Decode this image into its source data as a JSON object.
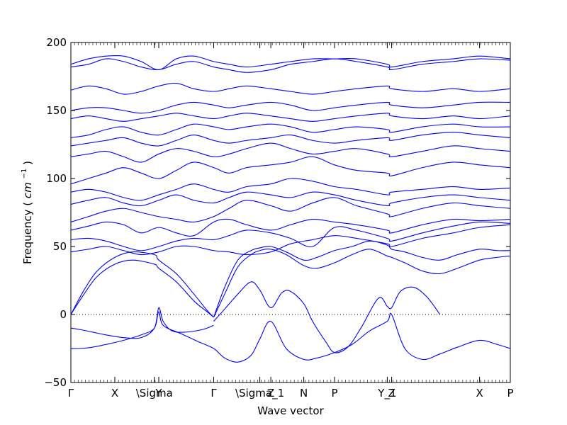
{
  "chart_data": {
    "type": "line",
    "xlabel": "Wave vector",
    "ylabel": "Frequency",
    "ylabel_unit": "cm",
    "ylabel_unit_exponent": "−1",
    "ylim": [
      -50,
      200
    ],
    "yticks": [
      -50,
      0,
      50,
      100,
      150,
      200
    ],
    "xlim": [
      0,
      1
    ],
    "zero_line": true,
    "line_color": "#0000ff",
    "high_symmetry_points": [
      {
        "label": "Γ",
        "x": 0.0
      },
      {
        "label": "X",
        "x": 0.1
      },
      {
        "label": "\\Sigma",
        "x": 0.19
      },
      {
        "label": "Y",
        "x": 0.2
      },
      {
        "label": "Γ",
        "x": 0.325
      },
      {
        "label": "\\Sigma_1",
        "x": 0.43
      },
      {
        "label": "Z",
        "x": 0.455
      },
      {
        "label": "N",
        "x": 0.53
      },
      {
        "label": "P",
        "x": 0.6
      },
      {
        "label": "Y_1",
        "x": 0.72
      },
      {
        "label": "Z",
        "x": 0.73
      },
      {
        "label": "X",
        "x": 0.93
      },
      {
        "label": "P",
        "x": 1.0
      }
    ],
    "series": [
      {
        "x": [
          0.0,
          0.02,
          0.05,
          0.08,
          0.12,
          0.16,
          0.19,
          0.2,
          0.21,
          0.25,
          0.29,
          0.325,
          0.35,
          0.38,
          0.41,
          0.43,
          0.455,
          0.49,
          0.53,
          0.56,
          0.6,
          0.64,
          0.68,
          0.72,
          0.73,
          0.76,
          0.8,
          0.84,
          0.88,
          0.93,
          0.97,
          1.0
        ],
        "values": [
          -25,
          -25,
          -24,
          -22,
          -19,
          -15,
          -10,
          2,
          -8,
          -14,
          -20,
          -25,
          -32,
          -35,
          -30,
          -18,
          -5,
          -25,
          -33,
          -32,
          -28,
          -22,
          -12,
          -5,
          0,
          -25,
          -33,
          -29,
          -24,
          -19,
          -22,
          -25
        ]
      },
      {
        "x": [
          0.0,
          0.02,
          0.05,
          0.08,
          0.12,
          0.16,
          0.19,
          0.2,
          0.21,
          0.23,
          0.26,
          0.3,
          0.325
        ],
        "values": [
          -10,
          -11,
          -13,
          -15,
          -17,
          -17,
          -10,
          5,
          -5,
          -12,
          -13,
          -11,
          -8
        ]
      },
      {
        "x": [
          0.325,
          0.35,
          0.38,
          0.41,
          0.43,
          0.455,
          0.48,
          0.5,
          0.53,
          0.55,
          0.58,
          0.6,
          0.63,
          0.66,
          0.7,
          0.72,
          0.73,
          0.75,
          0.78,
          0.81,
          0.84
        ],
        "values": [
          -5,
          4,
          15,
          24,
          18,
          5,
          16,
          17,
          8,
          -5,
          -20,
          -28,
          -24,
          -10,
          12,
          6,
          5,
          17,
          20,
          13,
          0
        ]
      },
      {
        "x": [
          0.0,
          0.03,
          0.06,
          0.1,
          0.14,
          0.19,
          0.2,
          0.24,
          0.28,
          0.31,
          0.325
        ],
        "values": [
          0,
          18,
          32,
          42,
          46,
          44,
          40,
          30,
          15,
          3,
          -2
        ]
      },
      {
        "x": [
          0.0,
          0.03,
          0.06,
          0.1,
          0.14,
          0.19,
          0.2,
          0.24,
          0.28,
          0.31,
          0.325
        ],
        "values": [
          0,
          15,
          28,
          37,
          40,
          37,
          34,
          24,
          10,
          2,
          -2
        ]
      },
      {
        "x": [
          0.325,
          0.35,
          0.38,
          0.41,
          0.43,
          0.455,
          0.49,
          0.53,
          0.56,
          0.6,
          0.64,
          0.68,
          0.72,
          0.73,
          0.76,
          0.8,
          0.84,
          0.88,
          0.93,
          0.97,
          1.0
        ],
        "values": [
          -2,
          15,
          35,
          44,
          47,
          48,
          44,
          36,
          34,
          38,
          44,
          48,
          43,
          42,
          38,
          32,
          30,
          34,
          40,
          42,
          43
        ]
      },
      {
        "x": [
          0.325,
          0.35,
          0.38,
          0.41,
          0.43,
          0.455,
          0.49,
          0.53,
          0.56,
          0.6,
          0.64,
          0.68,
          0.72,
          0.73,
          0.76,
          0.8,
          0.84,
          0.88,
          0.93,
          0.97,
          1.0
        ],
        "values": [
          -2,
          20,
          40,
          47,
          49,
          50,
          46,
          40,
          42,
          47,
          50,
          54,
          51,
          48,
          46,
          42,
          40,
          44,
          48,
          47,
          47
        ]
      },
      {
        "x": [
          0.0,
          0.04,
          0.08,
          0.12,
          0.16,
          0.2,
          0.24,
          0.28,
          0.325,
          0.36,
          0.4,
          0.455,
          0.5,
          0.55,
          0.6,
          0.65,
          0.72,
          0.73,
          0.8,
          0.87,
          0.93,
          1.0
        ],
        "values": [
          46,
          48,
          50,
          47,
          44,
          46,
          50,
          50,
          47,
          46,
          44,
          46,
          52,
          55,
          58,
          56,
          52,
          50,
          56,
          60,
          64,
          66
        ]
      },
      {
        "x": [
          0.0,
          0.04,
          0.08,
          0.12,
          0.16,
          0.2,
          0.24,
          0.28,
          0.325,
          0.36,
          0.4,
          0.455,
          0.5,
          0.55,
          0.6,
          0.65,
          0.72,
          0.73,
          0.8,
          0.87,
          0.93,
          1.0
        ],
        "values": [
          55,
          56,
          54,
          50,
          47,
          50,
          54,
          56,
          55,
          58,
          62,
          60,
          56,
          50,
          64,
          62,
          56,
          54,
          60,
          65,
          68,
          67
        ]
      },
      {
        "x": [
          0.0,
          0.04,
          0.08,
          0.12,
          0.16,
          0.2,
          0.24,
          0.28,
          0.325,
          0.36,
          0.4,
          0.455,
          0.5,
          0.55,
          0.6,
          0.65,
          0.72,
          0.73,
          0.8,
          0.87,
          0.93,
          1.0
        ],
        "values": [
          62,
          65,
          68,
          66,
          60,
          64,
          60,
          58,
          68,
          70,
          66,
          62,
          66,
          70,
          68,
          66,
          62,
          60,
          66,
          70,
          69,
          70
        ]
      },
      {
        "x": [
          0.0,
          0.04,
          0.08,
          0.12,
          0.16,
          0.2,
          0.24,
          0.28,
          0.325,
          0.36,
          0.4,
          0.455,
          0.5,
          0.55,
          0.6,
          0.65,
          0.72,
          0.73,
          0.8,
          0.87,
          0.93,
          1.0
        ],
        "values": [
          68,
          72,
          76,
          78,
          75,
          72,
          70,
          68,
          72,
          78,
          84,
          80,
          76,
          82,
          86,
          80,
          74,
          72,
          78,
          82,
          80,
          78
        ]
      },
      {
        "x": [
          0.0,
          0.04,
          0.08,
          0.12,
          0.16,
          0.2,
          0.24,
          0.28,
          0.325,
          0.36,
          0.4,
          0.455,
          0.5,
          0.55,
          0.6,
          0.65,
          0.72,
          0.73,
          0.8,
          0.87,
          0.93,
          1.0
        ],
        "values": [
          81,
          84,
          86,
          82,
          80,
          84,
          88,
          84,
          82,
          86,
          90,
          88,
          86,
          90,
          88,
          84,
          80,
          82,
          86,
          88,
          86,
          84
        ]
      },
      {
        "x": [
          0.0,
          0.04,
          0.08,
          0.12,
          0.16,
          0.2,
          0.24,
          0.28,
          0.325,
          0.36,
          0.4,
          0.455,
          0.5,
          0.55,
          0.6,
          0.65,
          0.72,
          0.73,
          0.8,
          0.87,
          0.93,
          1.0
        ],
        "values": [
          90,
          92,
          90,
          86,
          84,
          88,
          92,
          96,
          92,
          90,
          94,
          96,
          100,
          98,
          94,
          92,
          88,
          90,
          92,
          94,
          92,
          93
        ]
      },
      {
        "x": [
          0.0,
          0.04,
          0.08,
          0.12,
          0.16,
          0.2,
          0.24,
          0.28,
          0.325,
          0.36,
          0.4,
          0.455,
          0.5,
          0.55,
          0.6,
          0.65,
          0.72,
          0.73,
          0.8,
          0.87,
          0.93,
          1.0
        ],
        "values": [
          96,
          100,
          104,
          108,
          104,
          100,
          106,
          112,
          108,
          104,
          108,
          110,
          112,
          116,
          110,
          106,
          104,
          102,
          108,
          112,
          110,
          108
        ]
      },
      {
        "x": [
          0.0,
          0.04,
          0.08,
          0.12,
          0.16,
          0.2,
          0.24,
          0.28,
          0.325,
          0.36,
          0.4,
          0.455,
          0.5,
          0.55,
          0.6,
          0.65,
          0.72,
          0.73,
          0.8,
          0.87,
          0.93,
          1.0
        ],
        "values": [
          116,
          118,
          120,
          116,
          112,
          118,
          122,
          120,
          116,
          118,
          122,
          126,
          122,
          118,
          120,
          122,
          118,
          116,
          120,
          124,
          122,
          120
        ]
      },
      {
        "x": [
          0.0,
          0.04,
          0.08,
          0.12,
          0.16,
          0.2,
          0.24,
          0.28,
          0.325,
          0.36,
          0.4,
          0.455,
          0.5,
          0.55,
          0.6,
          0.65,
          0.72,
          0.73,
          0.8,
          0.87,
          0.93,
          1.0
        ],
        "values": [
          124,
          126,
          128,
          130,
          126,
          124,
          128,
          132,
          128,
          126,
          128,
          130,
          132,
          128,
          126,
          128,
          130,
          128,
          132,
          134,
          132,
          130
        ]
      },
      {
        "x": [
          0.0,
          0.04,
          0.08,
          0.12,
          0.16,
          0.2,
          0.24,
          0.28,
          0.325,
          0.36,
          0.4,
          0.455,
          0.5,
          0.55,
          0.6,
          0.65,
          0.72,
          0.73,
          0.8,
          0.87,
          0.93,
          1.0
        ],
        "values": [
          130,
          132,
          136,
          138,
          134,
          132,
          136,
          140,
          138,
          136,
          138,
          140,
          138,
          134,
          136,
          138,
          136,
          134,
          138,
          140,
          138,
          138
        ]
      },
      {
        "x": [
          0.0,
          0.04,
          0.08,
          0.12,
          0.16,
          0.2,
          0.24,
          0.28,
          0.325,
          0.36,
          0.4,
          0.455,
          0.5,
          0.55,
          0.6,
          0.65,
          0.72,
          0.73,
          0.8,
          0.87,
          0.93,
          1.0
        ],
        "values": [
          144,
          146,
          144,
          142,
          144,
          146,
          148,
          146,
          144,
          146,
          148,
          146,
          144,
          142,
          144,
          146,
          148,
          146,
          144,
          146,
          144,
          146
        ]
      },
      {
        "x": [
          0.0,
          0.04,
          0.08,
          0.12,
          0.16,
          0.2,
          0.24,
          0.28,
          0.325,
          0.36,
          0.4,
          0.455,
          0.5,
          0.55,
          0.6,
          0.65,
          0.72,
          0.73,
          0.8,
          0.87,
          0.93,
          1.0
        ],
        "values": [
          150,
          152,
          152,
          150,
          148,
          150,
          154,
          156,
          154,
          152,
          154,
          156,
          154,
          150,
          152,
          154,
          156,
          154,
          152,
          154,
          156,
          156
        ]
      },
      {
        "x": [
          0.0,
          0.04,
          0.08,
          0.12,
          0.16,
          0.2,
          0.24,
          0.28,
          0.325,
          0.36,
          0.4,
          0.455,
          0.5,
          0.55,
          0.6,
          0.65,
          0.72,
          0.73,
          0.8,
          0.87,
          0.93,
          1.0
        ],
        "values": [
          165,
          168,
          166,
          162,
          164,
          168,
          170,
          166,
          164,
          166,
          168,
          166,
          164,
          162,
          164,
          166,
          168,
          166,
          164,
          166,
          164,
          166
        ]
      },
      {
        "x": [
          0.0,
          0.04,
          0.08,
          0.12,
          0.16,
          0.2,
          0.24,
          0.28,
          0.325,
          0.36,
          0.4,
          0.455,
          0.5,
          0.55,
          0.6,
          0.65,
          0.72,
          0.73,
          0.8,
          0.87,
          0.93,
          1.0
        ],
        "values": [
          182,
          184,
          188,
          186,
          182,
          180,
          184,
          186,
          182,
          180,
          178,
          180,
          184,
          186,
          188,
          186,
          182,
          180,
          184,
          186,
          188,
          187
        ]
      },
      {
        "x": [
          0.0,
          0.04,
          0.08,
          0.12,
          0.16,
          0.2,
          0.24,
          0.28,
          0.325,
          0.36,
          0.4,
          0.455,
          0.5,
          0.55,
          0.6,
          0.65,
          0.72,
          0.73,
          0.8,
          0.87,
          0.93,
          1.0
        ],
        "values": [
          184,
          188,
          190,
          190,
          186,
          180,
          188,
          190,
          186,
          184,
          182,
          184,
          186,
          188,
          188,
          188,
          184,
          182,
          186,
          188,
          190,
          188
        ]
      }
    ]
  }
}
